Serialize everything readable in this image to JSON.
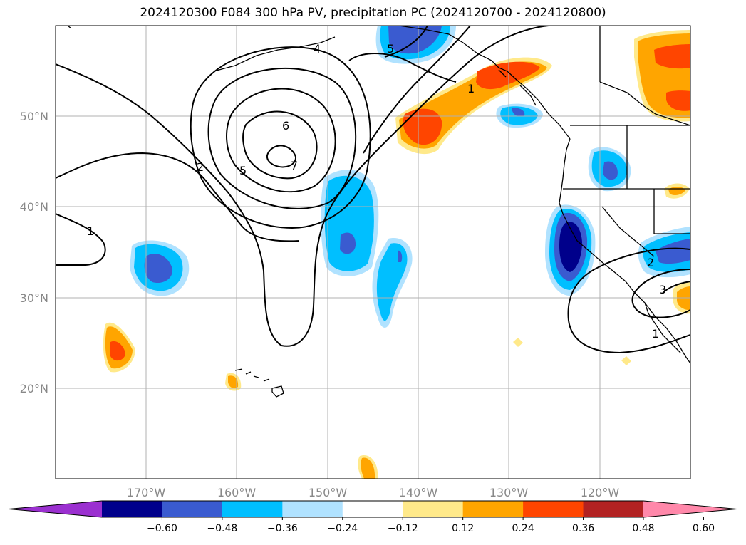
{
  "title": "2024120300 F084 300 hPa PV, precipitation PC (2024120700 - 2024120800)",
  "lat_ticks": [
    "50°N",
    "40°N",
    "30°N",
    "20°N"
  ],
  "lon_ticks": [
    "170°W",
    "160°W",
    "150°W",
    "140°W",
    "130°W",
    "120°W"
  ],
  "colorbar": {
    "tick_labels": [
      "−0.60",
      "−0.48",
      "−0.36",
      "−0.24",
      "−0.12",
      "0.12",
      "0.24",
      "0.36",
      "0.48",
      "0.60"
    ],
    "colors": [
      "#9b30d0",
      "#00008b",
      "#3a5bd0",
      "#00bfff",
      "#b0e2ff",
      "#ffffff",
      "#ffe98a",
      "#ffa500",
      "#ff4500",
      "#b22222",
      "#ff88aa"
    ]
  },
  "contour_labels": [
    "7",
    "6",
    "5",
    "4",
    "2",
    "1",
    "5",
    "1",
    "2",
    "3",
    "1"
  ],
  "colors": {
    "neg_weak": "#b0e2ff",
    "neg_mid": "#00bfff",
    "neg_strong": "#3a5bd0",
    "neg_extreme": "#00008b",
    "pos_weak": "#ffe98a",
    "pos_mid": "#ffa500",
    "pos_strong": "#ff4500",
    "grid": "#b0b0b0"
  }
}
